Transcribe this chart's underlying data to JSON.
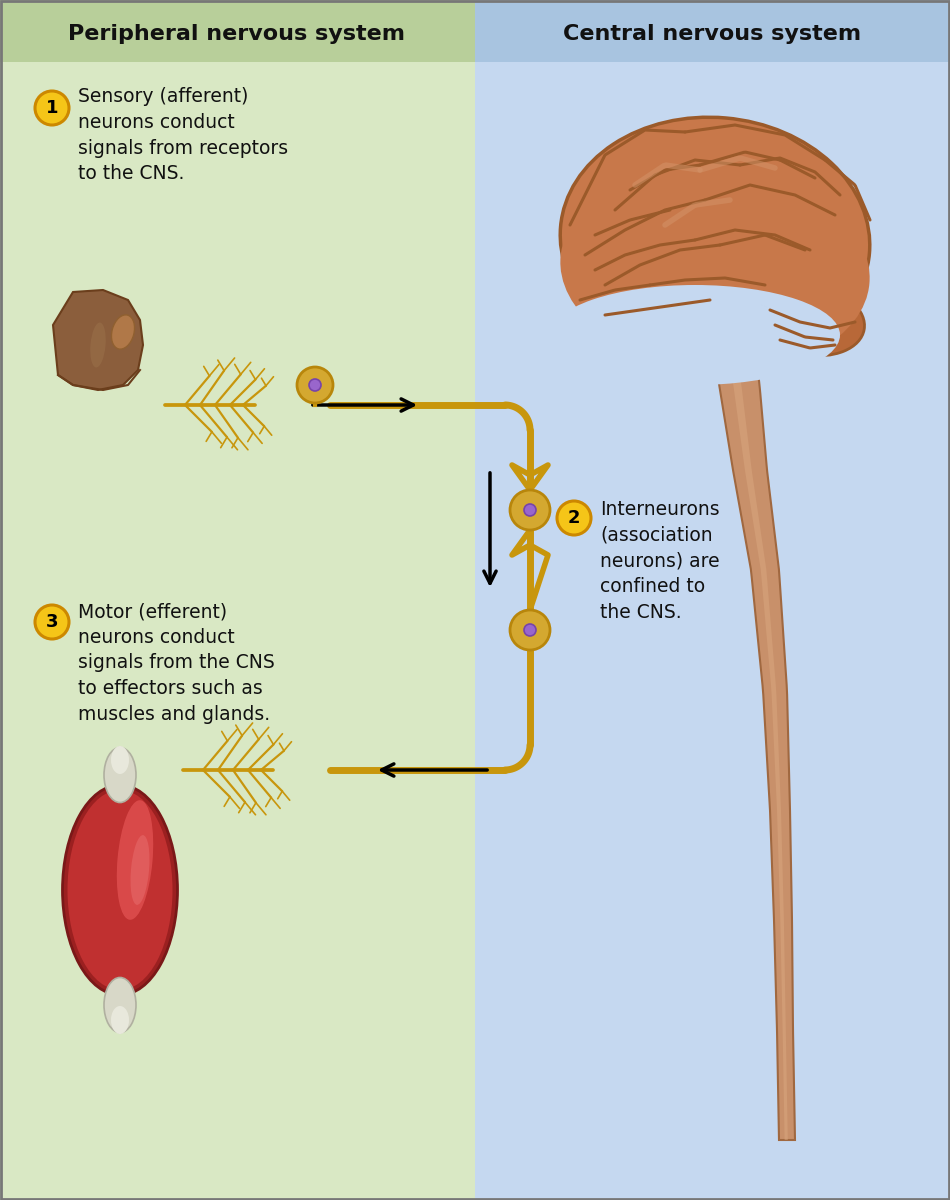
{
  "title_left": "Peripheral nervous system",
  "title_right": "Central nervous system",
  "bg_left": "#d9e8c4",
  "bg_right": "#c5d8f0",
  "title_bg_left": "#b8cf9a",
  "title_bg_right": "#a8c4e0",
  "axon_color": "#c8960c",
  "axon_lw": 5,
  "text_color": "#111111",
  "label1": "Sensory (afferent)\nneurons conduct\nsignals from receptors\nto the CNS.",
  "label2": "Interneurons\n(association\nneurons) are\nconfined to\nthe CNS.",
  "label3": "Motor (efferent)\nneurons conduct\nsignals from the CNS\nto effectors such as\nmuscles and glands.",
  "neuron_body_color": "#d4a830",
  "neuron_body_edge": "#b8860b",
  "neuron_nucleus_color": "#9966cc",
  "label_circle_color": "#f5c518",
  "label_circle_edge": "#cc8800",
  "finger_color": "#8B5E3C",
  "finger_dark": "#6B3E1C",
  "muscle_red": "#c0392b",
  "muscle_highlight": "#e05050",
  "tendon_color": "#ddddd0",
  "brain_main": "#c8784a",
  "brain_fold": "#9b5a2a",
  "brain_light": "#d4956a",
  "brainstem_color": "#c8906a",
  "brainstem_edge": "#a06840"
}
